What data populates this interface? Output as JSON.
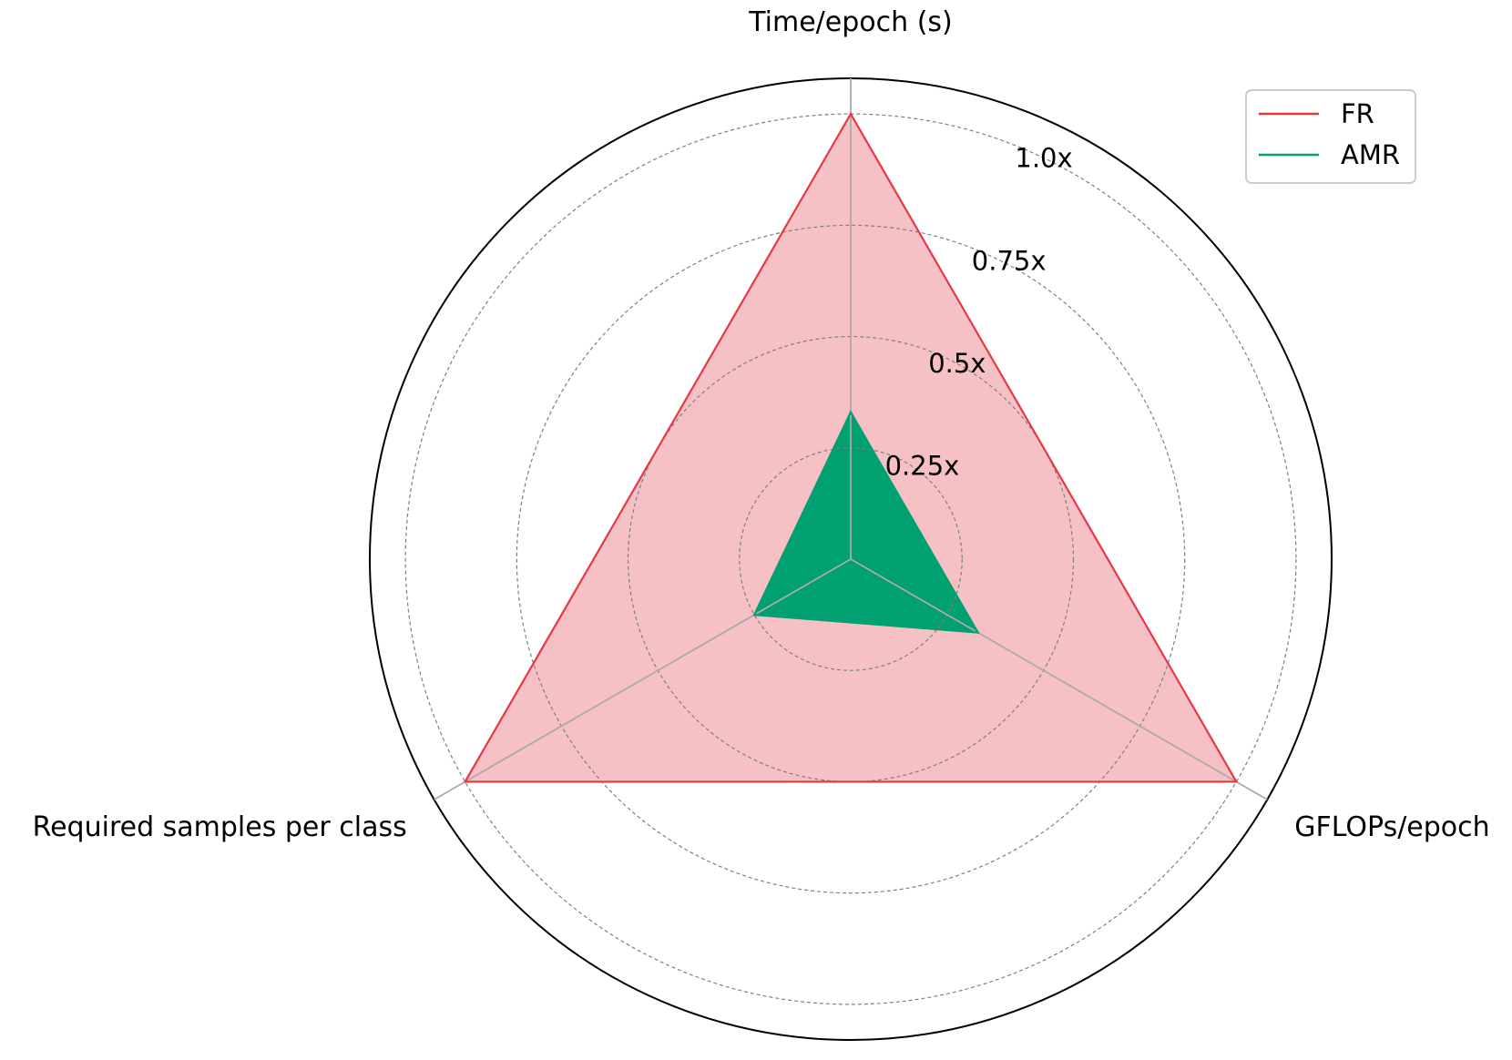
{
  "chart_data": {
    "type": "radar",
    "axes": [
      "Time/epoch (s)",
      "GFLOPs/epoch",
      "Required samples per class"
    ],
    "rlim": [
      0,
      1.08
    ],
    "ring_ticks": [
      0.25,
      0.5,
      0.75,
      1.0
    ],
    "ring_labels": [
      "0.25x",
      "0.5x",
      "0.75x",
      "1.0x"
    ],
    "grid": true,
    "legend_position": "top-right",
    "series": [
      {
        "name": "FR",
        "values": [
          1.0,
          1.0,
          1.0
        ],
        "color": "#e63946",
        "fill": "#f6c1c5",
        "fill_opacity": 1.0
      },
      {
        "name": "AMR",
        "values": [
          0.33,
          0.33,
          0.25
        ],
        "color": "#00a071",
        "fill": "#00a071",
        "fill_opacity": 1.0
      }
    ]
  }
}
